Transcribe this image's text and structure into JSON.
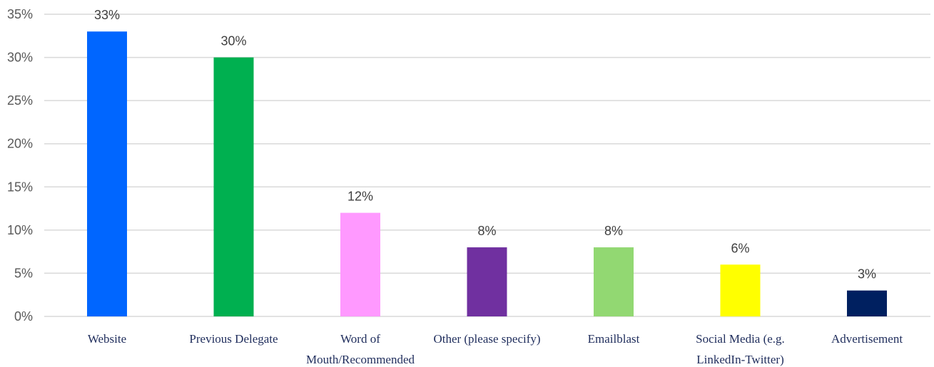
{
  "chart_data": {
    "type": "bar",
    "categories": [
      "Website",
      "Previous Delegate",
      "Word of Mouth/Recommended",
      "Other (please specify)",
      "Emailblast",
      "Social Media (e.g. LinkedIn-Twitter)",
      "Advertisement"
    ],
    "category_lines": [
      [
        "Website"
      ],
      [
        "Previous Delegate"
      ],
      [
        "Word of",
        "Mouth/Recommended"
      ],
      [
        "Other (please specify)"
      ],
      [
        "Emailblast"
      ],
      [
        "Social Media (e.g.",
        "LinkedIn-Twitter)"
      ],
      [
        "Advertisement"
      ]
    ],
    "values": [
      33,
      30,
      12,
      8,
      8,
      6,
      3
    ],
    "data_labels": [
      "33%",
      "30%",
      "12%",
      "8%",
      "8%",
      "6%",
      "3%"
    ],
    "colors": [
      "#0066ff",
      "#00b050",
      "#ff99ff",
      "#7030a0",
      "#92d872",
      "#ffff00",
      "#002060"
    ],
    "ylim": [
      0,
      35
    ],
    "yticks": [
      0,
      5,
      10,
      15,
      20,
      25,
      30,
      35
    ],
    "ytick_labels": [
      "0%",
      "5%",
      "10%",
      "15%",
      "20%",
      "25%",
      "30%",
      "35%"
    ],
    "grid": true,
    "legend": "none",
    "title": "",
    "xlabel": "",
    "ylabel": ""
  }
}
